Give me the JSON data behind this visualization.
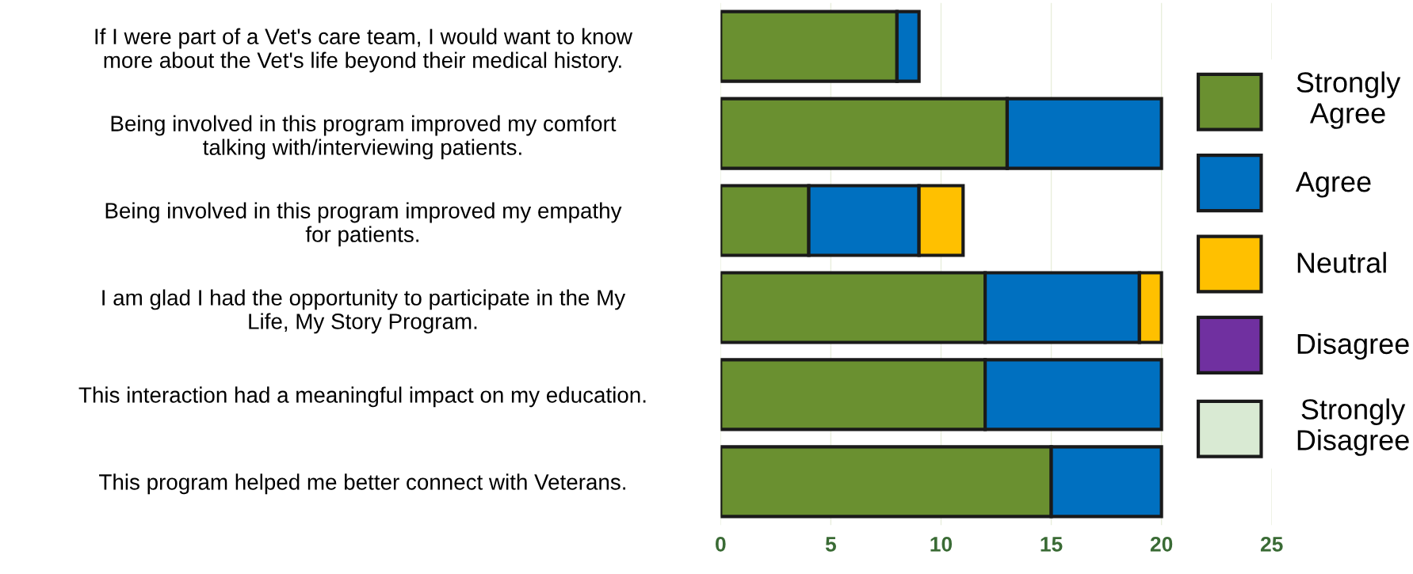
{
  "chart_data": {
    "type": "bar",
    "orientation": "horizontal",
    "stacked": true,
    "categories": [
      "If I were part of a Vet's care team, I would want to know\nmore about the Vet's life beyond their medical history.",
      "Being involved in this program improved my comfort\ntalking with/interviewing patients.",
      "Being involved in this program improved my empathy\nfor patients.",
      "I am glad I had the opportunity to participate in the My\nLife, My Story Program.",
      "This interaction had a meaningful impact on my education.",
      "This program helped me better connect with Veterans."
    ],
    "series": [
      {
        "name": "Strongly Agree",
        "color": "#6a9030",
        "values": [
          8,
          13,
          4,
          12,
          12,
          15
        ]
      },
      {
        "name": "Agree",
        "color": "#0070c0",
        "values": [
          1,
          7,
          5,
          7,
          8,
          5
        ]
      },
      {
        "name": "Neutral",
        "color": "#ffc000",
        "values": [
          0,
          0,
          2,
          1,
          0,
          0
        ]
      },
      {
        "name": "Disagree",
        "color": "#7030a0",
        "values": [
          0,
          0,
          0,
          0,
          0,
          0
        ]
      },
      {
        "name": "Strongly Disagree",
        "color": "#d9ead3",
        "values": [
          0,
          0,
          0,
          0,
          0,
          0
        ]
      }
    ],
    "xlim": [
      0,
      25
    ],
    "xticks": [
      0,
      5,
      10,
      15,
      20,
      25
    ],
    "grid": "x",
    "legend": "right"
  }
}
